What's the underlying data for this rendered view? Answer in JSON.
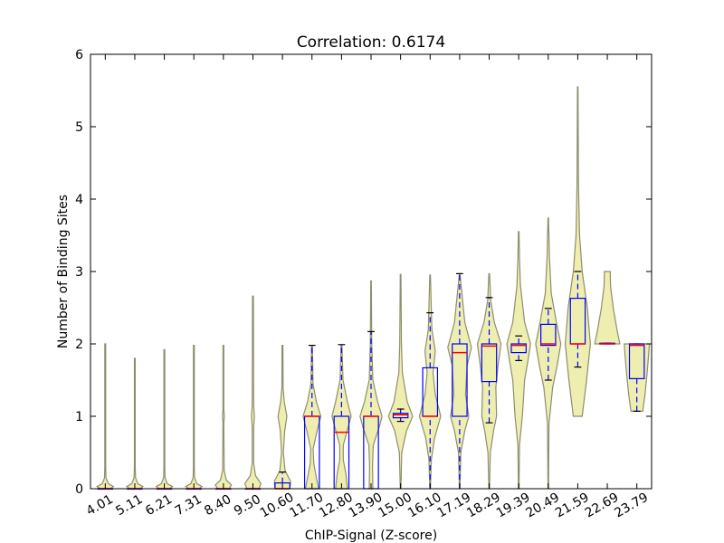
{
  "chart_data": {
    "type": "violin",
    "title": "Correlation: 0.6174",
    "xlabel": "ChIP-Signal (Z-score)",
    "ylabel": "Number of Binding Sites",
    "ylim": [
      0,
      6
    ],
    "yticks": [
      "0",
      "1",
      "2",
      "3",
      "4",
      "5",
      "6"
    ],
    "grid": false,
    "legend": "none",
    "colors": {
      "violin_fill": "#eeeeb0",
      "violin_edge": "#8e8e6e",
      "box": "#0000ff",
      "median": "#ff0000",
      "whisker": "#0000ff",
      "cap": "#000000"
    },
    "categories": [
      "4.01",
      "5.11",
      "6.21",
      "7.31",
      "8.40",
      "9.50",
      "10.60",
      "11.70",
      "12.80",
      "13.90",
      "15.00",
      "16.10",
      "17.19",
      "18.29",
      "19.39",
      "20.49",
      "21.59",
      "22.69",
      "23.79"
    ],
    "boxes": [
      {
        "q1": 0,
        "median": 0,
        "q3": 0,
        "whislo": 0,
        "whishi": 0
      },
      {
        "q1": 0,
        "median": 0,
        "q3": 0,
        "whislo": 0,
        "whishi": 0
      },
      {
        "q1": 0,
        "median": 0,
        "q3": 0,
        "whislo": 0,
        "whishi": 0
      },
      {
        "q1": 0,
        "median": 0,
        "q3": 0,
        "whislo": 0,
        "whishi": 0
      },
      {
        "q1": 0,
        "median": 0,
        "q3": 0,
        "whislo": 0,
        "whishi": 0
      },
      {
        "q1": 0,
        "median": 0,
        "q3": 0,
        "whislo": 0,
        "whishi": 0
      },
      {
        "q1": 0,
        "median": 0,
        "q3": 0.08,
        "whislo": 0,
        "whishi": 0.23
      },
      {
        "q1": 0,
        "median": 1,
        "q3": 1,
        "whislo": 0,
        "whishi": 1.98
      },
      {
        "q1": 0,
        "median": 0.78,
        "q3": 1,
        "whislo": 0,
        "whishi": 1.99
      },
      {
        "q1": 0,
        "median": 1,
        "q3": 1,
        "whislo": 0,
        "whishi": 2.17
      },
      {
        "q1": 0.98,
        "median": 1.02,
        "q3": 1.04,
        "whislo": 0.93,
        "whishi": 1.1
      },
      {
        "q1": 1,
        "median": 1,
        "q3": 1.67,
        "whislo": 0,
        "whishi": 2.43
      },
      {
        "q1": 1,
        "median": 1.88,
        "q3": 2,
        "whislo": 0,
        "whishi": 2.97
      },
      {
        "q1": 1.48,
        "median": 1.97,
        "q3": 2,
        "whislo": 0.91,
        "whishi": 2.64
      },
      {
        "q1": 1.88,
        "median": 1.98,
        "q3": 2,
        "whislo": 1.77,
        "whishi": 2.11
      },
      {
        "q1": 1.98,
        "median": 2,
        "q3": 2.27,
        "whislo": 1.5,
        "whishi": 2.49
      },
      {
        "q1": 2,
        "median": 2,
        "q3": 2.63,
        "whislo": 1.68,
        "whishi": 3
      },
      {
        "q1": 2,
        "median": 2,
        "q3": 2.01,
        "whislo": 2,
        "whishi": 2.01
      },
      {
        "q1": 1.52,
        "median": 1.98,
        "q3": 2,
        "whislo": 1.07,
        "whishi": 2
      }
    ],
    "violins": [
      {
        "min": 0,
        "max": 2.0,
        "profile": [
          [
            0,
            0.35
          ],
          [
            0.03,
            0.55
          ],
          [
            0.07,
            0.2
          ],
          [
            0.15,
            0.05
          ],
          [
            0.3,
            0.03
          ],
          [
            2.0,
            0.03
          ]
        ]
      },
      {
        "min": 0,
        "max": 1.8,
        "profile": [
          [
            0,
            0.35
          ],
          [
            0.03,
            0.55
          ],
          [
            0.07,
            0.2
          ],
          [
            0.15,
            0.05
          ],
          [
            0.3,
            0.03
          ],
          [
            1.8,
            0.03
          ]
        ]
      },
      {
        "min": 0,
        "max": 1.92,
        "profile": [
          [
            0,
            0.35
          ],
          [
            0.03,
            0.55
          ],
          [
            0.07,
            0.2
          ],
          [
            0.15,
            0.05
          ],
          [
            0.3,
            0.03
          ],
          [
            1.92,
            0.03
          ]
        ]
      },
      {
        "min": 0,
        "max": 1.98,
        "profile": [
          [
            0,
            0.35
          ],
          [
            0.03,
            0.55
          ],
          [
            0.07,
            0.2
          ],
          [
            0.15,
            0.05
          ],
          [
            0.3,
            0.03
          ],
          [
            1.98,
            0.03
          ]
        ]
      },
      {
        "min": 0,
        "max": 1.98,
        "profile": [
          [
            0,
            0.38
          ],
          [
            0.05,
            0.55
          ],
          [
            0.12,
            0.2
          ],
          [
            0.25,
            0.05
          ],
          [
            0.9,
            0.03
          ],
          [
            1.0,
            0.06
          ],
          [
            1.1,
            0.03
          ],
          [
            1.98,
            0.03
          ]
        ]
      },
      {
        "min": 0,
        "max": 2.66,
        "profile": [
          [
            0,
            0.4
          ],
          [
            0.07,
            0.55
          ],
          [
            0.18,
            0.18
          ],
          [
            0.35,
            0.05
          ],
          [
            0.85,
            0.05
          ],
          [
            1.0,
            0.1
          ],
          [
            1.15,
            0.05
          ],
          [
            2.66,
            0.03
          ]
        ]
      },
      {
        "min": 0,
        "max": 1.98,
        "profile": [
          [
            0,
            0.5
          ],
          [
            0.1,
            0.55
          ],
          [
            0.25,
            0.18
          ],
          [
            0.5,
            0.06
          ],
          [
            0.8,
            0.15
          ],
          [
            1.0,
            0.3
          ],
          [
            1.2,
            0.12
          ],
          [
            1.4,
            0.04
          ],
          [
            1.98,
            0.03
          ]
        ]
      },
      {
        "min": 0,
        "max": 1.98,
        "profile": [
          [
            0,
            0.45
          ],
          [
            0.15,
            0.3
          ],
          [
            0.35,
            0.12
          ],
          [
            0.55,
            0.08
          ],
          [
            0.8,
            0.35
          ],
          [
            1.0,
            0.6
          ],
          [
            1.2,
            0.3
          ],
          [
            1.45,
            0.07
          ],
          [
            1.98,
            0.03
          ]
        ]
      },
      {
        "min": 0,
        "max": 1.99,
        "profile": [
          [
            0,
            0.4
          ],
          [
            0.2,
            0.3
          ],
          [
            0.4,
            0.12
          ],
          [
            0.6,
            0.12
          ],
          [
            0.85,
            0.45
          ],
          [
            1.0,
            0.65
          ],
          [
            1.2,
            0.4
          ],
          [
            1.5,
            0.1
          ],
          [
            1.98,
            0.03
          ]
        ]
      },
      {
        "min": 0,
        "max": 2.87,
        "profile": [
          [
            0,
            0.12
          ],
          [
            0.3,
            0.1
          ],
          [
            0.6,
            0.15
          ],
          [
            0.85,
            0.55
          ],
          [
            1.0,
            0.75
          ],
          [
            1.2,
            0.45
          ],
          [
            1.5,
            0.12
          ],
          [
            2.0,
            0.05
          ],
          [
            2.87,
            0.02
          ]
        ]
      },
      {
        "min": 0,
        "max": 2.96,
        "profile": [
          [
            0,
            0.02
          ],
          [
            0.5,
            0.08
          ],
          [
            0.8,
            0.4
          ],
          [
            1.0,
            0.82
          ],
          [
            1.2,
            0.45
          ],
          [
            1.6,
            0.12
          ],
          [
            2.0,
            0.06
          ],
          [
            2.96,
            0.02
          ]
        ]
      },
      {
        "min": 0,
        "max": 2.95,
        "profile": [
          [
            0,
            0.02
          ],
          [
            0.4,
            0.08
          ],
          [
            0.7,
            0.3
          ],
          [
            1.0,
            0.72
          ],
          [
            1.3,
            0.35
          ],
          [
            1.6,
            0.2
          ],
          [
            1.9,
            0.35
          ],
          [
            2.2,
            0.12
          ],
          [
            2.95,
            0.02
          ]
        ]
      },
      {
        "min": 0,
        "max": 2.97,
        "profile": [
          [
            0,
            0.02
          ],
          [
            0.5,
            0.08
          ],
          [
            0.8,
            0.35
          ],
          [
            1.0,
            0.62
          ],
          [
            1.3,
            0.4
          ],
          [
            1.7,
            0.5
          ],
          [
            1.95,
            0.8
          ],
          [
            2.3,
            0.35
          ],
          [
            2.97,
            0.02
          ]
        ]
      },
      {
        "min": 0,
        "max": 2.97,
        "profile": [
          [
            0,
            0.02
          ],
          [
            0.5,
            0.08
          ],
          [
            0.8,
            0.3
          ],
          [
            1.0,
            0.5
          ],
          [
            1.4,
            0.45
          ],
          [
            1.7,
            0.6
          ],
          [
            2.0,
            0.8
          ],
          [
            2.3,
            0.35
          ],
          [
            2.6,
            0.1
          ],
          [
            2.97,
            0.02
          ]
        ]
      },
      {
        "min": 0,
        "max": 3.55,
        "profile": [
          [
            0,
            0.02
          ],
          [
            0.6,
            0.05
          ],
          [
            1.0,
            0.25
          ],
          [
            1.5,
            0.4
          ],
          [
            1.8,
            0.65
          ],
          [
            2.0,
            0.8
          ],
          [
            2.3,
            0.4
          ],
          [
            2.8,
            0.12
          ],
          [
            3.2,
            0.05
          ],
          [
            3.55,
            0.02
          ]
        ]
      },
      {
        "min": 0,
        "max": 3.74,
        "profile": [
          [
            0,
            0.02
          ],
          [
            0.9,
            0.05
          ],
          [
            1.4,
            0.3
          ],
          [
            1.7,
            0.6
          ],
          [
            2.0,
            0.85
          ],
          [
            2.3,
            0.55
          ],
          [
            2.7,
            0.2
          ],
          [
            3.2,
            0.08
          ],
          [
            3.74,
            0.02
          ]
        ]
      },
      {
        "min": 1.0,
        "max": 5.55,
        "profile": [
          [
            1.0,
            0.3
          ],
          [
            1.5,
            0.6
          ],
          [
            2.0,
            0.85
          ],
          [
            2.5,
            0.65
          ],
          [
            3.0,
            0.3
          ],
          [
            3.5,
            0.12
          ],
          [
            4.2,
            0.05
          ],
          [
            5.55,
            0.02
          ]
        ]
      },
      {
        "min": 2.0,
        "max": 3.0,
        "profile": [
          [
            2.0,
            0.85
          ],
          [
            2.2,
            0.65
          ],
          [
            2.5,
            0.4
          ],
          [
            2.8,
            0.22
          ],
          [
            3.0,
            0.2
          ]
        ]
      },
      {
        "min": 1.07,
        "max": 2.0,
        "profile": [
          [
            1.07,
            0.4
          ],
          [
            1.3,
            0.55
          ],
          [
            1.6,
            0.7
          ],
          [
            1.85,
            0.8
          ],
          [
            2.0,
            0.85
          ]
        ]
      }
    ]
  }
}
